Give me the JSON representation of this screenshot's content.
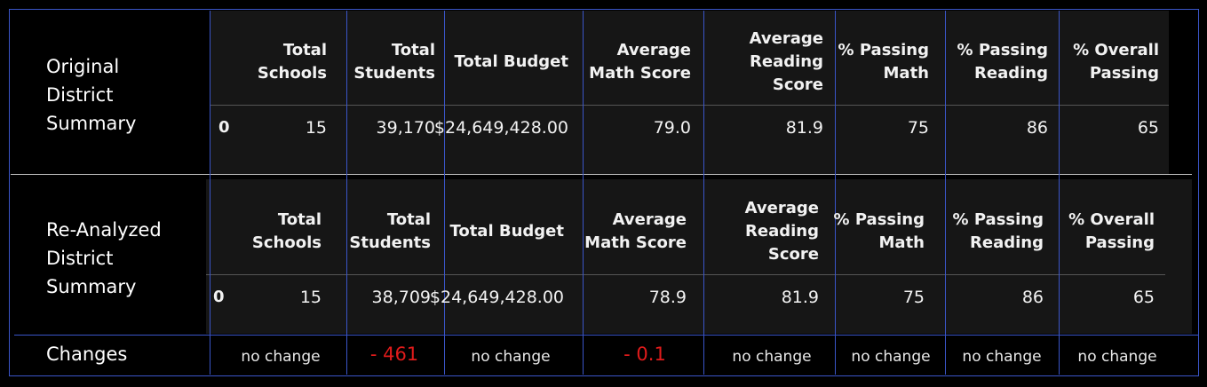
{
  "labels": {
    "original": [
      "Original",
      "District",
      "Summary"
    ],
    "reanalyzed": [
      "Re-Analyzed",
      "District",
      "Summary"
    ],
    "changes": "Changes"
  },
  "columns": [
    [
      "Total",
      "Schools"
    ],
    [
      "Total",
      "Students"
    ],
    [
      "Total Budget"
    ],
    [
      "Average",
      "Math Score"
    ],
    [
      "Average",
      "Reading",
      "Score"
    ],
    [
      "% Passing",
      "Math"
    ],
    [
      "% Passing",
      "Reading"
    ],
    [
      "% Overall",
      "Passing"
    ]
  ],
  "original": {
    "index": "0",
    "values": [
      "15",
      "39,170",
      "$24,649,428.00",
      "79.0",
      "81.9",
      "75",
      "86",
      "65"
    ]
  },
  "reanalyzed": {
    "index": "0",
    "values": [
      "15",
      "38,709",
      "$24,649,428.00",
      "78.9",
      "81.9",
      "75",
      "86",
      "65"
    ]
  },
  "changes": [
    "no change",
    "- 461",
    "no change",
    "- 0.1",
    "no change",
    "no change",
    "no change",
    "no change"
  ],
  "colors": {
    "negative": "#e01b1b",
    "grid_blue": "#3a55c8",
    "panel_bg": "#161616"
  }
}
